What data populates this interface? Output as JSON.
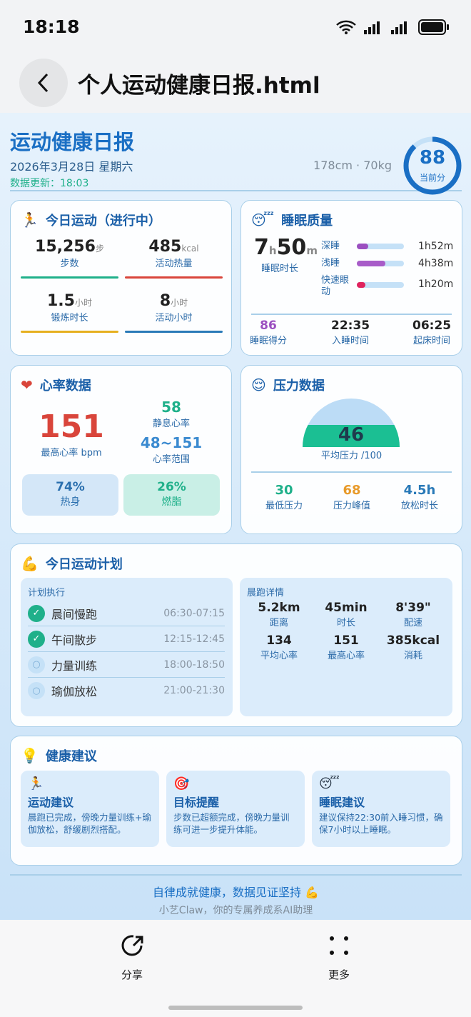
{
  "status_bar": {
    "time": "18:18"
  },
  "header": {
    "title": "个人运动健康日报.html"
  },
  "report": {
    "title": "运动健康日报",
    "date": "2026年3月28日 星期六",
    "updated": "数据更新：18:03",
    "body": "178cm · 70kg",
    "score": "88",
    "score_label": "当前分",
    "score_fraction": 0.88,
    "accent": "#1a6fc4"
  },
  "activity": {
    "title": "今日运动（进行中）",
    "icon": "runner-icon",
    "stats": [
      {
        "value": "15,256",
        "unit": "步",
        "label": "步数",
        "color": "#1fb08a"
      },
      {
        "value": "485",
        "unit": "kcal",
        "label": "活动热量",
        "color": "#d9453b"
      },
      {
        "value": "1.5",
        "unit": "小时",
        "label": "锻炼时长",
        "color": "#e6b020"
      },
      {
        "value": "8",
        "unit": "小时",
        "label": "活动小时",
        "color": "#2a7ab8"
      }
    ]
  },
  "sleep": {
    "title": "睡眠质量",
    "icon": "sleeping-face-icon",
    "hours": "7",
    "h": "h",
    "minutes": "50",
    "m": "m",
    "duration_label": "睡眠时长",
    "stages": [
      {
        "label": "深睡",
        "value": "1h52m",
        "fraction": 0.24,
        "color": "#9b4fc0"
      },
      {
        "label": "浅睡",
        "value": "4h38m",
        "fraction": 0.6,
        "color": "#a85cc8"
      },
      {
        "label": "快速眼动",
        "value": "1h20m",
        "fraction": 0.17,
        "color": "#e0245e"
      }
    ],
    "score": "86",
    "score_label": "睡眠得分",
    "bedtime": "22:35",
    "bedtime_label": "入睡时间",
    "wake": "06:25",
    "wake_label": "起床时间"
  },
  "heart": {
    "title": "心率数据",
    "icon": "heart-icon",
    "max": "151",
    "max_label": "最高心率 bpm",
    "resting": "58",
    "resting_label": "静息心率",
    "range": "48~151",
    "range_label": "心率范围",
    "zones": [
      {
        "value": "74%",
        "label": "热身"
      },
      {
        "value": "26%",
        "label": "燃脂"
      }
    ]
  },
  "stress": {
    "title": "压力数据",
    "icon": "relieved-face-icon",
    "avg": "46",
    "avg_label": "平均压力 /100",
    "avg_fraction": 0.46,
    "stats": [
      {
        "value": "30",
        "label": "最低压力",
        "color": "#1fb08a"
      },
      {
        "value": "68",
        "label": "压力峰值",
        "color": "#e89a2a"
      },
      {
        "value": "4.5h",
        "label": "放松时长",
        "color": "#2a7ab8"
      }
    ]
  },
  "plan": {
    "title": "今日运动计划",
    "icon": "flexed-biceps-icon",
    "exec_title": "计划执行",
    "items": [
      {
        "name": "晨间慢跑",
        "time": "06:30-07:15",
        "done": true
      },
      {
        "name": "午间散步",
        "time": "12:15-12:45",
        "done": true
      },
      {
        "name": "力量训练",
        "time": "18:00-18:50",
        "done": false
      },
      {
        "name": "瑜伽放松",
        "time": "21:00-21:30",
        "done": false
      }
    ],
    "run_title": "晨跑详情",
    "run": [
      {
        "value": "5.2km",
        "label": "距离"
      },
      {
        "value": "45min",
        "label": "时长"
      },
      {
        "value": "8'39\"",
        "label": "配速"
      },
      {
        "value": "134",
        "label": "平均心率"
      },
      {
        "value": "151",
        "label": "最高心率"
      },
      {
        "value": "385kcal",
        "label": "消耗"
      }
    ]
  },
  "advice": {
    "title": "健康建议",
    "icon": "light-bulb-icon",
    "items": [
      {
        "icon": "runner-icon",
        "title": "运动建议",
        "text": "晨跑已完成，傍晚力量训练+瑜伽放松，舒缓剧烈搭配。"
      },
      {
        "icon": "target-icon",
        "title": "目标提醒",
        "text": "步数已超额完成，傍晚力量训练可进一步提升体能。"
      },
      {
        "icon": "sleeping-face-icon",
        "title": "睡眠建议",
        "text": "建议保持22:30前入睡习惯，确保7小时以上睡眠。"
      }
    ]
  },
  "footer": {
    "slogan": "自律成就健康，数据见证坚持 💪",
    "sub": "小艺Claw，你的专属养成系AI助理"
  },
  "bottom": {
    "share": "分享",
    "more": "更多"
  }
}
